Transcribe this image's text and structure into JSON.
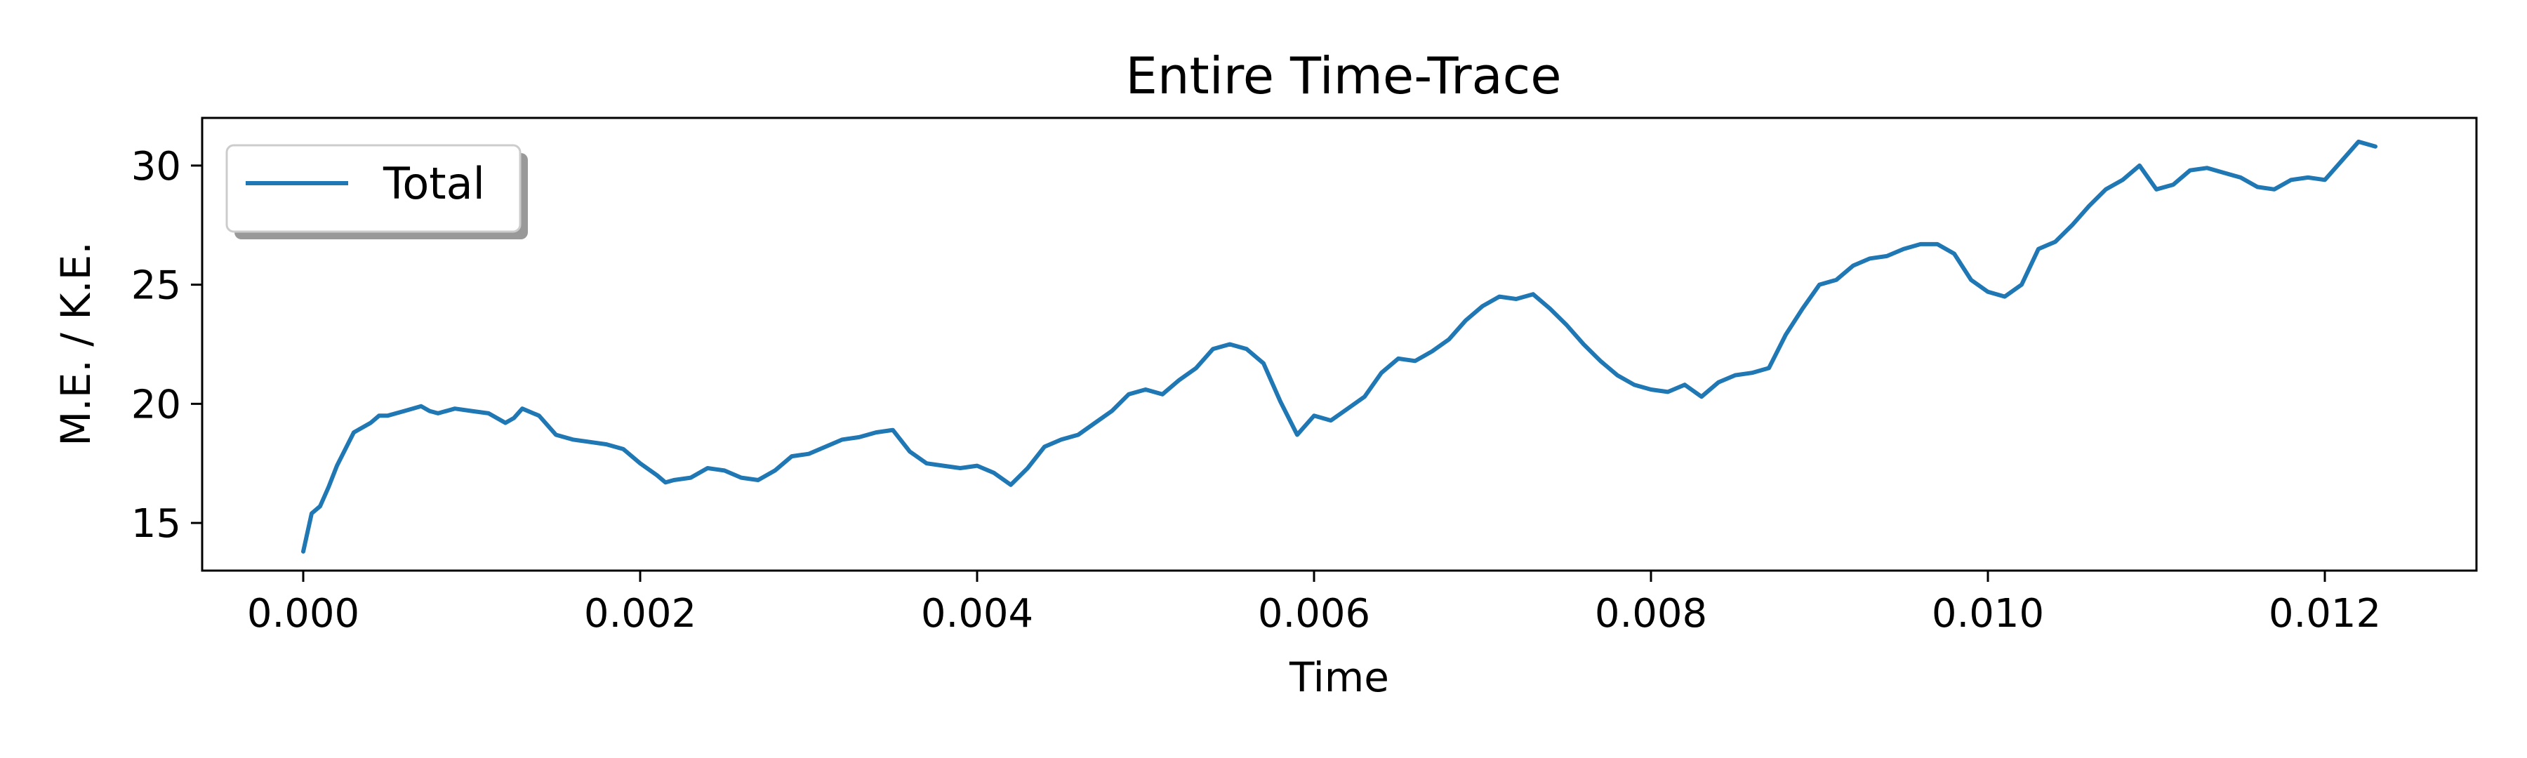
{
  "chart_data": {
    "type": "line",
    "title": "Entire Time-Trace",
    "xlabel": "Time",
    "ylabel": "M.E. / K.E.",
    "xlim": [
      -0.0006,
      0.0129
    ],
    "ylim": [
      13.0,
      32.0
    ],
    "x_ticks": [
      0.0,
      0.002,
      0.004,
      0.006,
      0.008,
      0.01,
      0.012
    ],
    "x_tick_labels": [
      "0.000",
      "0.002",
      "0.004",
      "0.006",
      "0.008",
      "0.010",
      "0.012"
    ],
    "y_ticks": [
      15,
      20,
      25,
      30
    ],
    "y_tick_labels": [
      "15",
      "20",
      "25",
      "30"
    ],
    "grid": false,
    "legend": {
      "position": "top-left",
      "shadow": true
    },
    "series": [
      {
        "name": "Total",
        "color": "#1f77b4",
        "x": [
          0.0,
          5e-05,
          0.0001,
          0.00015,
          0.0002,
          0.0003,
          0.0004,
          0.00045,
          0.0005,
          0.0006,
          0.0007,
          0.00075,
          0.0008,
          0.0009,
          0.001,
          0.0011,
          0.0012,
          0.00125,
          0.0013,
          0.0014,
          0.0015,
          0.0016,
          0.0017,
          0.0018,
          0.0019,
          0.002,
          0.0021,
          0.00215,
          0.0022,
          0.0023,
          0.0024,
          0.0025,
          0.0026,
          0.0027,
          0.0028,
          0.0029,
          0.003,
          0.0031,
          0.0032,
          0.0033,
          0.0034,
          0.0035,
          0.0036,
          0.0037,
          0.0038,
          0.0039,
          0.004,
          0.0041,
          0.0042,
          0.0043,
          0.0044,
          0.0045,
          0.0046,
          0.0047,
          0.0048,
          0.0049,
          0.005,
          0.0051,
          0.0052,
          0.0053,
          0.0054,
          0.0055,
          0.0056,
          0.0057,
          0.0058,
          0.0059,
          0.006,
          0.0061,
          0.0062,
          0.0063,
          0.0064,
          0.0065,
          0.0066,
          0.0067,
          0.0068,
          0.0069,
          0.007,
          0.0071,
          0.0072,
          0.0073,
          0.0074,
          0.0075,
          0.0076,
          0.0077,
          0.0078,
          0.0079,
          0.008,
          0.0081,
          0.0082,
          0.0083,
          0.0084,
          0.0085,
          0.0086,
          0.0087,
          0.0088,
          0.0089,
          0.009,
          0.0091,
          0.0092,
          0.0093,
          0.0094,
          0.0095,
          0.0096,
          0.0097,
          0.0098,
          0.0099,
          0.01,
          0.0101,
          0.0102,
          0.0103,
          0.0104,
          0.0105,
          0.0106,
          0.0107,
          0.0108,
          0.0109,
          0.011,
          0.0111,
          0.0112,
          0.0113,
          0.0114,
          0.0115,
          0.0116,
          0.0117,
          0.0118,
          0.0119,
          0.012,
          0.0121,
          0.0122,
          0.0123
        ],
        "y": [
          13.8,
          15.4,
          15.7,
          16.5,
          17.4,
          18.8,
          19.2,
          19.5,
          19.5,
          19.7,
          19.9,
          19.7,
          19.6,
          19.8,
          19.7,
          19.6,
          19.2,
          19.4,
          19.8,
          19.5,
          18.7,
          18.5,
          18.4,
          18.3,
          18.1,
          17.5,
          17.0,
          16.7,
          16.8,
          16.9,
          17.3,
          17.2,
          16.9,
          16.8,
          17.2,
          17.8,
          17.9,
          18.2,
          18.5,
          18.6,
          18.8,
          18.9,
          18.0,
          17.5,
          17.4,
          17.3,
          17.4,
          17.1,
          16.6,
          17.3,
          18.2,
          18.5,
          18.7,
          19.2,
          19.7,
          20.4,
          20.6,
          20.4,
          21.0,
          21.5,
          22.3,
          22.5,
          22.3,
          21.7,
          20.1,
          18.7,
          19.5,
          19.3,
          19.8,
          20.3,
          21.3,
          21.9,
          21.8,
          22.2,
          22.7,
          23.5,
          24.1,
          24.5,
          24.4,
          24.6,
          24.0,
          23.3,
          22.5,
          21.8,
          21.2,
          20.8,
          20.6,
          20.5,
          20.8,
          20.3,
          20.9,
          21.2,
          21.3,
          21.5,
          22.9,
          24.0,
          25.0,
          25.2,
          25.8,
          26.1,
          26.2,
          26.5,
          26.7,
          26.7,
          26.3,
          25.2,
          24.7,
          24.5,
          25.0,
          26.5,
          26.8,
          27.5,
          28.3,
          29.0,
          29.4,
          30.0,
          29.0,
          29.2,
          29.8,
          29.9,
          29.7,
          29.5,
          29.1,
          29.0,
          29.4,
          29.5,
          29.4,
          30.2,
          31.0,
          30.8
        ]
      }
    ]
  }
}
